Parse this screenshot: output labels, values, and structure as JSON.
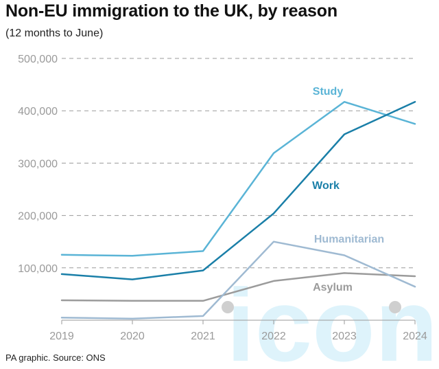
{
  "header": {
    "title": "Non-EU immigration to the UK, by reason",
    "subtitle": "(12 months to June)"
  },
  "footer": {
    "source": "PA graphic. Source: ONS"
  },
  "watermark": {
    "text": "iconic"
  },
  "chart_data": {
    "type": "line",
    "title": "Non-EU immigration to the UK, by reason",
    "subtitle": "(12 months to June)",
    "x": [
      2019,
      2020,
      2021,
      2022,
      2023,
      2024
    ],
    "x_tick_labels": [
      "2019",
      "2020",
      "2021",
      "2022",
      "2023",
      "2024"
    ],
    "ylim": [
      0,
      500000
    ],
    "y_ticks": [
      100000,
      200000,
      300000,
      400000,
      500000
    ],
    "y_tick_labels": [
      "100,000",
      "200,000",
      "300,000",
      "400,000",
      "500,000"
    ],
    "grid": true,
    "legend": "inline labels",
    "series": [
      {
        "name": "Study",
        "color": "#5ab4d6",
        "values": [
          125000,
          123000,
          132000,
          319000,
          417000,
          375000
        ]
      },
      {
        "name": "Work",
        "color": "#1a7fa8",
        "values": [
          88000,
          78000,
          95000,
          204000,
          355000,
          417000
        ]
      },
      {
        "name": "Humanitarian",
        "color": "#9fbad2",
        "values": [
          5000,
          3000,
          8000,
          150000,
          124000,
          64000
        ]
      },
      {
        "name": "Asylum",
        "color": "#9b9b9b",
        "values": [
          38000,
          37000,
          37000,
          75000,
          90000,
          84000
        ]
      }
    ]
  }
}
